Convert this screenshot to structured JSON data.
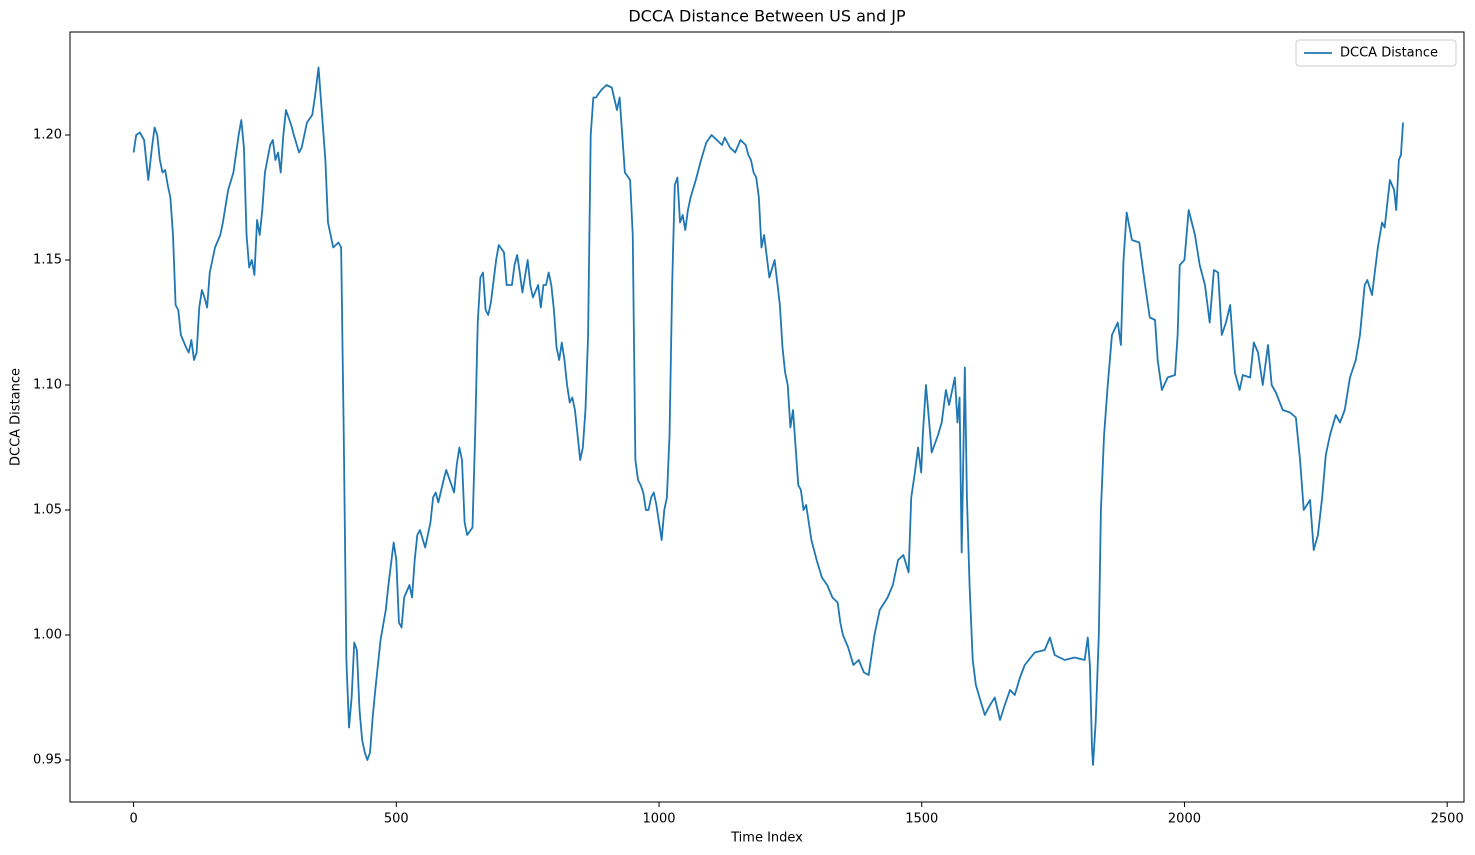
{
  "chart_data": {
    "type": "line",
    "title": "DCCA Distance Between US and JP",
    "x_label": "Time Index",
    "y_label": "DCCA Distance",
    "xlim": [
      -121,
      2532
    ],
    "ylim": [
      0.9332,
      1.2412
    ],
    "xticks": [
      0,
      500,
      1000,
      1500,
      2000,
      2500
    ],
    "yticks": [
      0.95,
      {
        "value": 1,
        "label": "1.00"
      },
      1.05,
      {
        "value": 1.1,
        "label": "1.10"
      },
      1.15,
      {
        "value": 1.2,
        "label": "1.20"
      }
    ],
    "grid": false,
    "legend": "upper right",
    "series": [
      {
        "name": "DCCA Distance",
        "color": "#1f77b4",
        "x": [
          0,
          5,
          12,
          20,
          28,
          35,
          40,
          45,
          50,
          55,
          60,
          65,
          70,
          75,
          80,
          85,
          90,
          100,
          105,
          110,
          115,
          120,
          125,
          130,
          135,
          140,
          145,
          155,
          165,
          170,
          180,
          190,
          200,
          205,
          210,
          215,
          220,
          225,
          230,
          235,
          240,
          245,
          250,
          260,
          265,
          270,
          275,
          280,
          285,
          290,
          300,
          305,
          315,
          320,
          330,
          340,
          345,
          352,
          358,
          365,
          370,
          375,
          380,
          385,
          390,
          395,
          400,
          405,
          410,
          415,
          420,
          425,
          430,
          435,
          440,
          445,
          450,
          455,
          460,
          470,
          480,
          485,
          495,
          500,
          505,
          510,
          515,
          525,
          530,
          535,
          540,
          545,
          555,
          565,
          570,
          575,
          580,
          590,
          595,
          605,
          610,
          615,
          620,
          625,
          630,
          635,
          645,
          650,
          655,
          660,
          665,
          670,
          675,
          680,
          690,
          695,
          705,
          710,
          720,
          725,
          730,
          735,
          740,
          750,
          755,
          760,
          770,
          775,
          780,
          785,
          790,
          795,
          800,
          805,
          810,
          815,
          820,
          825,
          830,
          835,
          840,
          845,
          850,
          855,
          860,
          865,
          870,
          875,
          880,
          890,
          900,
          910,
          920,
          925,
          930,
          935,
          945,
          950,
          955,
          960,
          965,
          970,
          975,
          980,
          985,
          990,
          995,
          1000,
          1005,
          1010,
          1015,
          1020,
          1025,
          1030,
          1035,
          1040,
          1045,
          1050,
          1055,
          1060,
          1070,
          1080,
          1090,
          1100,
          1110,
          1120,
          1125,
          1135,
          1145,
          1155,
          1165,
          1170,
          1175,
          1180,
          1185,
          1190,
          1195,
          1200,
          1210,
          1220,
          1230,
          1235,
          1240,
          1245,
          1250,
          1255,
          1260,
          1265,
          1270,
          1275,
          1280,
          1290,
          1300,
          1310,
          1320,
          1330,
          1340,
          1345,
          1350,
          1360,
          1370,
          1380,
          1390,
          1399,
          1410,
          1420,
          1435,
          1445,
          1455,
          1465,
          1475,
          1480,
          1487,
          1493,
          1499,
          1502,
          1508,
          1513,
          1519,
          1531,
          1538,
          1546,
          1552,
          1557,
          1563,
          1568,
          1572,
          1576,
          1582,
          1586,
          1591,
          1597,
          1603,
          1610,
          1620,
          1630,
          1639,
          1649,
          1658,
          1668,
          1677,
          1687,
          1696,
          1715,
          1734,
          1744,
          1753,
          1772,
          1791,
          1810,
          1816,
          1820,
          1824,
          1826,
          1831,
          1837,
          1841,
          1847,
          1854,
          1862,
          1873,
          1879,
          1884,
          1890,
          1900,
          1914,
          1925,
          1934,
          1944,
          1949,
          1957,
          1968,
          1982,
          1987,
          1991,
          2000,
          2008,
          2020,
          2029,
          2039,
          2048,
          2056,
          2064,
          2071,
          2079,
          2087,
          2096,
          2105,
          2111,
          2125,
          2132,
          2140,
          2149,
          2159,
          2166,
          2174,
          2187,
          2201,
          2212,
          2220,
          2227,
          2239,
          2246,
          2254,
          2262,
          2269,
          2277,
          2288,
          2296,
          2305,
          2315,
          2326,
          2334,
          2343,
          2348,
          2357,
          2368,
          2376,
          2381,
          2391,
          2399,
          2403,
          2408,
          2412,
          2416
        ],
        "values": [
          1.193,
          1.2,
          1.201,
          1.198,
          1.182,
          1.195,
          1.203,
          1.2,
          1.19,
          1.185,
          1.186,
          1.18,
          1.175,
          1.16,
          1.132,
          1.13,
          1.12,
          1.115,
          1.113,
          1.118,
          1.11,
          1.113,
          1.131,
          1.138,
          1.135,
          1.131,
          1.145,
          1.155,
          1.16,
          1.165,
          1.178,
          1.185,
          1.2,
          1.206,
          1.195,
          1.16,
          1.147,
          1.15,
          1.144,
          1.166,
          1.16,
          1.17,
          1.185,
          1.196,
          1.198,
          1.19,
          1.193,
          1.185,
          1.2,
          1.21,
          1.204,
          1.2,
          1.193,
          1.195,
          1.205,
          1.208,
          1.215,
          1.227,
          1.21,
          1.19,
          1.165,
          1.16,
          1.155,
          1.156,
          1.157,
          1.155,
          1.08,
          0.99,
          0.963,
          0.975,
          0.997,
          0.994,
          0.97,
          0.958,
          0.953,
          0.95,
          0.953,
          0.967,
          0.978,
          0.998,
          1.01,
          1.02,
          1.037,
          1.03,
          1.005,
          1.003,
          1.015,
          1.02,
          1.015,
          1.03,
          1.04,
          1.042,
          1.035,
          1.045,
          1.055,
          1.057,
          1.053,
          1.062,
          1.066,
          1.06,
          1.057,
          1.068,
          1.075,
          1.07,
          1.045,
          1.04,
          1.043,
          1.08,
          1.125,
          1.143,
          1.145,
          1.13,
          1.128,
          1.133,
          1.15,
          1.156,
          1.153,
          1.14,
          1.14,
          1.148,
          1.152,
          1.145,
          1.137,
          1.15,
          1.14,
          1.135,
          1.14,
          1.131,
          1.14,
          1.14,
          1.145,
          1.14,
          1.13,
          1.115,
          1.11,
          1.117,
          1.11,
          1.1,
          1.093,
          1.095,
          1.09,
          1.08,
          1.07,
          1.075,
          1.09,
          1.12,
          1.2,
          1.215,
          1.215,
          1.218,
          1.22,
          1.219,
          1.21,
          1.215,
          1.2,
          1.185,
          1.182,
          1.16,
          1.07,
          1.062,
          1.06,
          1.057,
          1.05,
          1.05,
          1.055,
          1.057,
          1.052,
          1.045,
          1.038,
          1.05,
          1.055,
          1.08,
          1.14,
          1.18,
          1.183,
          1.165,
          1.168,
          1.162,
          1.17,
          1.175,
          1.182,
          1.19,
          1.197,
          1.2,
          1.198,
          1.196,
          1.199,
          1.195,
          1.193,
          1.198,
          1.196,
          1.192,
          1.19,
          1.185,
          1.183,
          1.175,
          1.155,
          1.16,
          1.143,
          1.15,
          1.132,
          1.115,
          1.105,
          1.1,
          1.083,
          1.09,
          1.075,
          1.06,
          1.058,
          1.05,
          1.052,
          1.038,
          1.03,
          1.023,
          1.02,
          1.015,
          1.013,
          1.005,
          1.0,
          0.995,
          0.988,
          0.99,
          0.985,
          0.984,
          1.0,
          1.01,
          1.015,
          1.02,
          1.03,
          1.032,
          1.025,
          1.055,
          1.065,
          1.075,
          1.065,
          1.08,
          1.1,
          1.088,
          1.073,
          1.08,
          1.085,
          1.098,
          1.092,
          1.097,
          1.103,
          1.085,
          1.095,
          1.033,
          1.107,
          1.055,
          1.02,
          0.99,
          0.98,
          0.975,
          0.968,
          0.972,
          0.975,
          0.966,
          0.972,
          0.978,
          0.976,
          0.983,
          0.988,
          0.993,
          0.994,
          0.999,
          0.992,
          0.99,
          0.991,
          0.99,
          0.999,
          0.988,
          0.955,
          0.948,
          0.965,
          1.0,
          1.05,
          1.08,
          1.1,
          1.12,
          1.125,
          1.116,
          1.15,
          1.169,
          1.158,
          1.157,
          1.14,
          1.127,
          1.126,
          1.11,
          1.098,
          1.103,
          1.104,
          1.12,
          1.148,
          1.15,
          1.17,
          1.16,
          1.148,
          1.14,
          1.125,
          1.146,
          1.145,
          1.12,
          1.125,
          1.132,
          1.105,
          1.098,
          1.104,
          1.103,
          1.117,
          1.113,
          1.1,
          1.116,
          1.1,
          1.097,
          1.09,
          1.089,
          1.087,
          1.07,
          1.05,
          1.054,
          1.034,
          1.04,
          1.055,
          1.072,
          1.08,
          1.088,
          1.085,
          1.09,
          1.103,
          1.11,
          1.12,
          1.14,
          1.142,
          1.136,
          1.155,
          1.165,
          1.163,
          1.182,
          1.178,
          1.17,
          1.19,
          1.192,
          1.205
        ]
      }
    ]
  }
}
